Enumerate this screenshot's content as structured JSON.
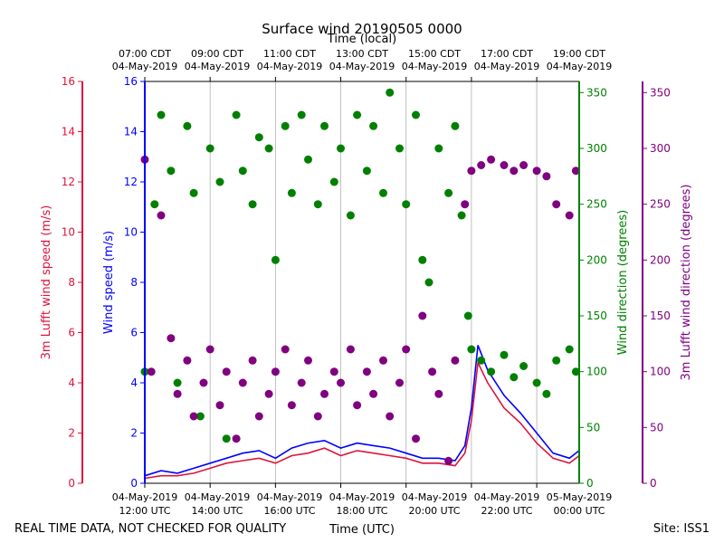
{
  "chart_data": {
    "type": "scatter",
    "title": "Surface wind 20190505 0000",
    "top_axis_label": "Time (local)",
    "top_ticks": [
      {
        "time": "07:00 CDT",
        "date": "04-May-2019"
      },
      {
        "time": "09:00 CDT",
        "date": "04-May-2019"
      },
      {
        "time": "11:00 CDT",
        "date": "04-May-2019"
      },
      {
        "time": "13:00 CDT",
        "date": "04-May-2019"
      },
      {
        "time": "15:00 CDT",
        "date": "04-May-2019"
      },
      {
        "time": "17:00 CDT",
        "date": "04-May-2019"
      },
      {
        "time": "19:00 CDT",
        "date": "04-May-2019"
      }
    ],
    "bottom_axis_label": "Time (UTC)",
    "bottom_ticks": [
      {
        "date": "04-May-2019",
        "time": "12:00 UTC"
      },
      {
        "date": "04-May-2019",
        "time": "14:00 UTC"
      },
      {
        "date": "04-May-2019",
        "time": "16:00 UTC"
      },
      {
        "date": "04-May-2019",
        "time": "18:00 UTC"
      },
      {
        "date": "04-May-2019",
        "time": "20:00 UTC"
      },
      {
        "date": "04-May-2019",
        "time": "22:00 UTC"
      },
      {
        "date": "05-May-2019",
        "time": "00:00 UTC"
      }
    ],
    "xlim_hours_utc": [
      12,
      25.3
    ],
    "axes": {
      "lufft_speed": {
        "label": "3m Lufft wind speed (m/s)",
        "ylim": [
          0,
          16
        ],
        "ticks": [
          "0",
          "2",
          "4",
          "6",
          "8",
          "10",
          "12",
          "14",
          "16"
        ],
        "color": "#dc143c"
      },
      "wind_speed": {
        "label": "Wind speed (m/s)",
        "ylim": [
          0,
          16
        ],
        "ticks": [
          "0",
          "2",
          "4",
          "6",
          "8",
          "10",
          "12",
          "14",
          "16"
        ],
        "color": "#0000ff"
      },
      "wind_direction": {
        "label": "Wind direction (degrees)",
        "ylim": [
          0,
          360
        ],
        "ticks": [
          "0",
          "50",
          "100",
          "150",
          "200",
          "250",
          "300",
          "350"
        ],
        "color": "#008000"
      },
      "lufft_direction": {
        "label": "3m Lufft wind direction (degrees)",
        "ylim": [
          0,
          360
        ],
        "ticks": [
          "0",
          "50",
          "100",
          "150",
          "200",
          "250",
          "300",
          "350"
        ],
        "color": "#800080"
      }
    },
    "series": [
      {
        "name": "Wind speed (m/s)",
        "kind": "line",
        "color": "#0000ff",
        "points": [
          [
            12.0,
            0.3
          ],
          [
            12.5,
            0.5
          ],
          [
            13.0,
            0.4
          ],
          [
            13.5,
            0.6
          ],
          [
            14.0,
            0.8
          ],
          [
            14.5,
            1.0
          ],
          [
            15.0,
            1.2
          ],
          [
            15.5,
            1.3
          ],
          [
            16.0,
            1.0
          ],
          [
            16.5,
            1.4
          ],
          [
            17.0,
            1.6
          ],
          [
            17.5,
            1.7
          ],
          [
            18.0,
            1.4
          ],
          [
            18.5,
            1.6
          ],
          [
            19.0,
            1.5
          ],
          [
            19.5,
            1.4
          ],
          [
            20.0,
            1.2
          ],
          [
            20.5,
            1.0
          ],
          [
            21.0,
            1.0
          ],
          [
            21.5,
            0.9
          ],
          [
            21.8,
            1.5
          ],
          [
            22.0,
            3.0
          ],
          [
            22.2,
            5.5
          ],
          [
            22.5,
            4.5
          ],
          [
            23.0,
            3.5
          ],
          [
            23.5,
            2.8
          ],
          [
            24.0,
            2.0
          ],
          [
            24.5,
            1.2
          ],
          [
            25.0,
            1.0
          ],
          [
            25.3,
            1.3
          ]
        ]
      },
      {
        "name": "3m Lufft wind speed (m/s)",
        "kind": "line",
        "color": "#dc143c",
        "points": [
          [
            12.0,
            0.2
          ],
          [
            12.5,
            0.3
          ],
          [
            13.0,
            0.3
          ],
          [
            13.5,
            0.4
          ],
          [
            14.0,
            0.6
          ],
          [
            14.5,
            0.8
          ],
          [
            15.0,
            0.9
          ],
          [
            15.5,
            1.0
          ],
          [
            16.0,
            0.8
          ],
          [
            16.5,
            1.1
          ],
          [
            17.0,
            1.2
          ],
          [
            17.5,
            1.4
          ],
          [
            18.0,
            1.1
          ],
          [
            18.5,
            1.3
          ],
          [
            19.0,
            1.2
          ],
          [
            19.5,
            1.1
          ],
          [
            20.0,
            1.0
          ],
          [
            20.5,
            0.8
          ],
          [
            21.0,
            0.8
          ],
          [
            21.5,
            0.7
          ],
          [
            21.8,
            1.2
          ],
          [
            22.0,
            2.5
          ],
          [
            22.2,
            4.8
          ],
          [
            22.5,
            4.0
          ],
          [
            23.0,
            3.0
          ],
          [
            23.5,
            2.4
          ],
          [
            24.0,
            1.6
          ],
          [
            24.5,
            1.0
          ],
          [
            25.0,
            0.8
          ],
          [
            25.3,
            1.1
          ]
        ]
      },
      {
        "name": "Wind direction (degrees)",
        "kind": "scatter",
        "color": "#008000",
        "points": [
          [
            12.0,
            100
          ],
          [
            12.3,
            250
          ],
          [
            12.5,
            330
          ],
          [
            12.8,
            280
          ],
          [
            13.0,
            90
          ],
          [
            13.3,
            320
          ],
          [
            13.5,
            260
          ],
          [
            13.7,
            60
          ],
          [
            14.0,
            300
          ],
          [
            14.3,
            270
          ],
          [
            14.5,
            40
          ],
          [
            14.8,
            330
          ],
          [
            15.0,
            280
          ],
          [
            15.3,
            250
          ],
          [
            15.5,
            310
          ],
          [
            15.8,
            300
          ],
          [
            16.0,
            200
          ],
          [
            16.3,
            320
          ],
          [
            16.5,
            260
          ],
          [
            16.8,
            330
          ],
          [
            17.0,
            290
          ],
          [
            17.3,
            250
          ],
          [
            17.5,
            320
          ],
          [
            17.8,
            270
          ],
          [
            18.0,
            300
          ],
          [
            18.3,
            240
          ],
          [
            18.5,
            330
          ],
          [
            18.8,
            280
          ],
          [
            19.0,
            320
          ],
          [
            19.3,
            260
          ],
          [
            19.5,
            350
          ],
          [
            19.8,
            300
          ],
          [
            20.0,
            250
          ],
          [
            20.3,
            330
          ],
          [
            20.5,
            200
          ],
          [
            20.7,
            180
          ],
          [
            21.0,
            300
          ],
          [
            21.3,
            260
          ],
          [
            21.5,
            320
          ],
          [
            21.7,
            240
          ],
          [
            21.9,
            150
          ],
          [
            22.0,
            120
          ],
          [
            22.3,
            110
          ],
          [
            22.6,
            100
          ],
          [
            23.0,
            115
          ],
          [
            23.3,
            95
          ],
          [
            23.6,
            105
          ],
          [
            24.0,
            90
          ],
          [
            24.3,
            80
          ],
          [
            24.6,
            110
          ],
          [
            25.0,
            120
          ],
          [
            25.2,
            100
          ]
        ]
      },
      {
        "name": "3m Lufft wind direction (degrees)",
        "kind": "scatter",
        "color": "#800080",
        "points": [
          [
            12.0,
            290
          ],
          [
            12.2,
            100
          ],
          [
            12.5,
            240
          ],
          [
            12.8,
            130
          ],
          [
            13.0,
            80
          ],
          [
            13.3,
            110
          ],
          [
            13.5,
            60
          ],
          [
            13.8,
            90
          ],
          [
            14.0,
            120
          ],
          [
            14.3,
            70
          ],
          [
            14.5,
            100
          ],
          [
            14.8,
            40
          ],
          [
            15.0,
            90
          ],
          [
            15.3,
            110
          ],
          [
            15.5,
            60
          ],
          [
            15.8,
            80
          ],
          [
            16.0,
            100
          ],
          [
            16.3,
            120
          ],
          [
            16.5,
            70
          ],
          [
            16.8,
            90
          ],
          [
            17.0,
            110
          ],
          [
            17.3,
            60
          ],
          [
            17.5,
            80
          ],
          [
            17.8,
            100
          ],
          [
            18.0,
            90
          ],
          [
            18.3,
            120
          ],
          [
            18.5,
            70
          ],
          [
            18.8,
            100
          ],
          [
            19.0,
            80
          ],
          [
            19.3,
            110
          ],
          [
            19.5,
            60
          ],
          [
            19.8,
            90
          ],
          [
            20.0,
            120
          ],
          [
            20.3,
            40
          ],
          [
            20.5,
            150
          ],
          [
            20.8,
            100
          ],
          [
            21.0,
            80
          ],
          [
            21.3,
            20
          ],
          [
            21.5,
            110
          ],
          [
            21.8,
            250
          ],
          [
            22.0,
            280
          ],
          [
            22.3,
            285
          ],
          [
            22.6,
            290
          ],
          [
            23.0,
            285
          ],
          [
            23.3,
            280
          ],
          [
            23.6,
            285
          ],
          [
            24.0,
            280
          ],
          [
            24.3,
            275
          ],
          [
            24.6,
            250
          ],
          [
            25.0,
            240
          ],
          [
            25.2,
            280
          ]
        ]
      }
    ]
  },
  "footer": {
    "disclaimer": "REAL TIME DATA, NOT CHECKED FOR QUALITY",
    "site": "Site: ISS1"
  }
}
